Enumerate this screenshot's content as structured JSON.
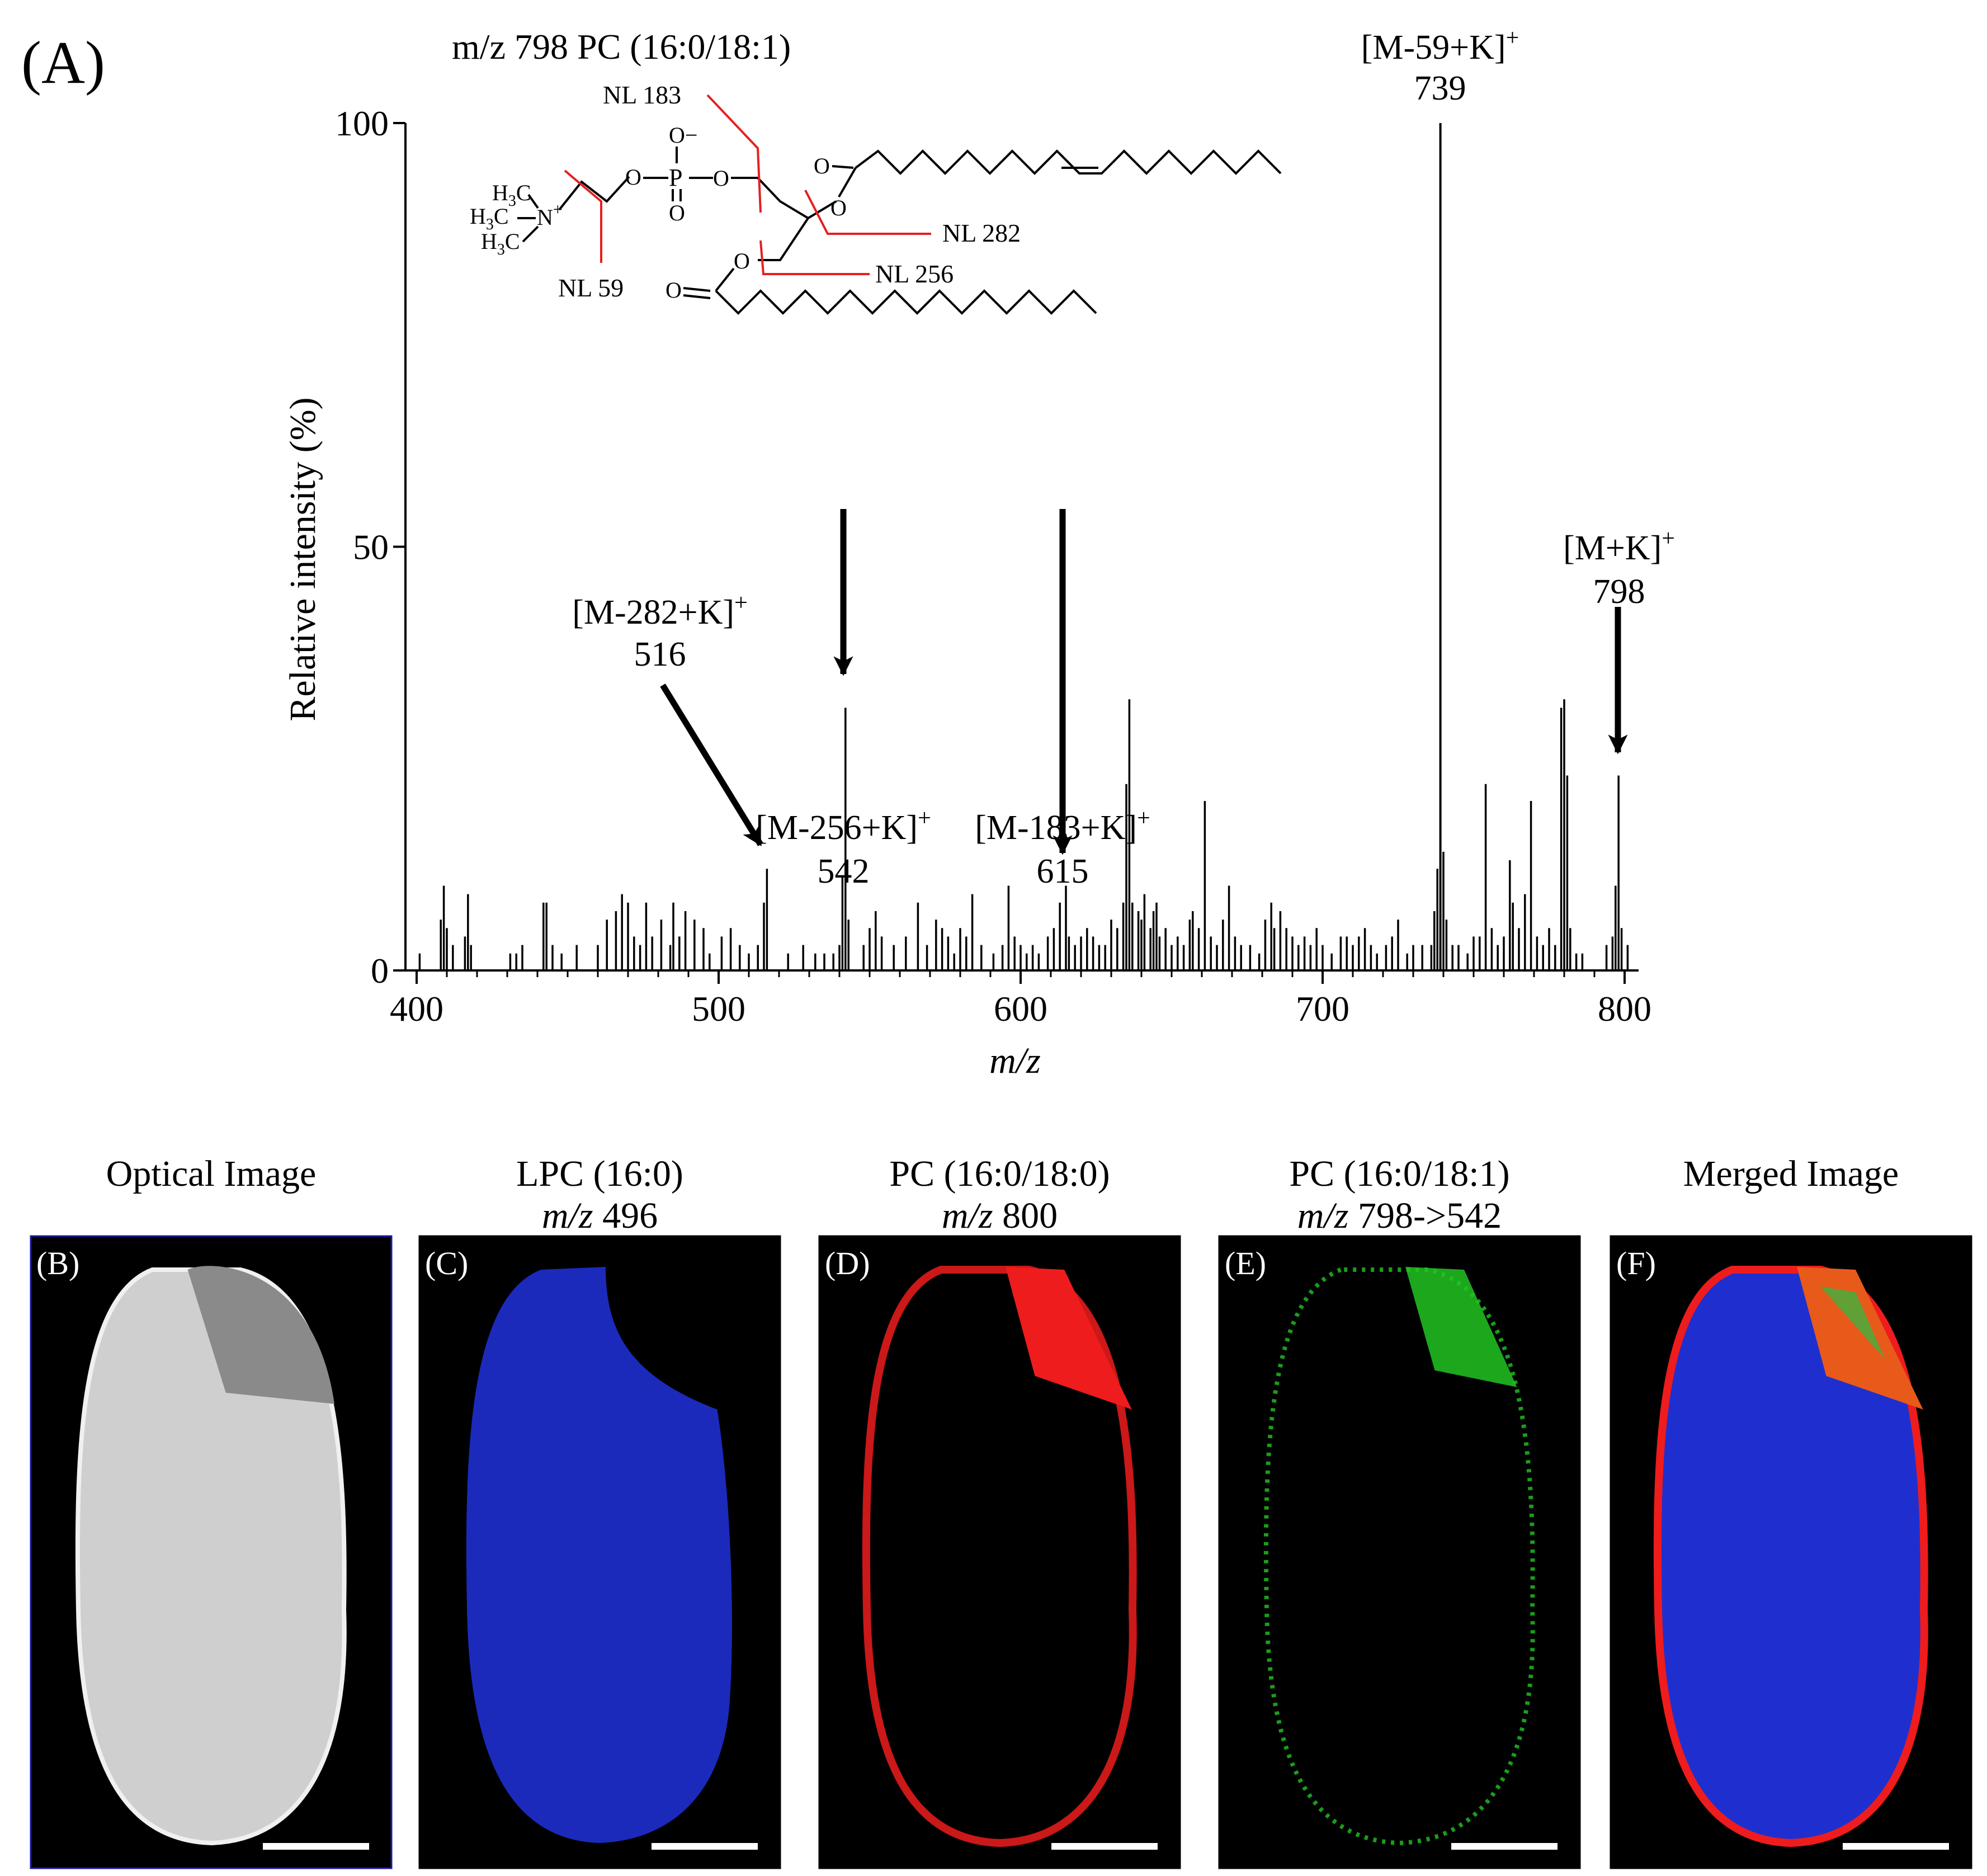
{
  "figure": {
    "panel_a_letter": "(A)",
    "structure": {
      "title": "m/z 798 PC (16:0/18:1)",
      "nl_labels": [
        "NL 183",
        "NL 282",
        "NL 256",
        "NL 59"
      ],
      "atom_o_minus": "O−",
      "atom_o": "O",
      "atom_p": "P",
      "atom_n": "N",
      "n_charge": "+",
      "methyl_prefix": "H",
      "methyl_sub": "3",
      "methyl_suffix": "C"
    },
    "image_panels": [
      {
        "letter": "(B)",
        "title1": "Optical Image",
        "title2": "",
        "title2_prefix": "",
        "title2_value": "",
        "color": "#d8d8d8"
      },
      {
        "letter": "(C)",
        "title1": "LPC (16:0)",
        "title2_prefix": "m/z",
        "title2_value": " 496",
        "color": "#1f2fcf"
      },
      {
        "letter": "(D)",
        "title1": "PC (16:0/18:0)",
        "title2_prefix": "m/z",
        "title2_value": " 800",
        "color": "#ee1c1c"
      },
      {
        "letter": "(E)",
        "title1": "PC (16:0/18:1)",
        "title2_prefix": "m/z",
        "title2_value": " 798->542",
        "color": "#22c422"
      },
      {
        "letter": "(F)",
        "title1": "Merged Image",
        "title2_prefix": "",
        "title2_value": "",
        "color": "#1f2fcf"
      }
    ]
  },
  "chart_data": {
    "type": "bar",
    "title": "",
    "xlabel": "m/z",
    "ylabel": "Relative intensity (%)",
    "xlim": [
      400,
      800
    ],
    "ylim": [
      0,
      100
    ],
    "x_ticks": [
      400,
      500,
      600,
      700,
      800
    ],
    "y_ticks": [
      0,
      50,
      100
    ],
    "annotations": [
      {
        "ion": "[M-282+K]",
        "charge": "+",
        "mz": "516",
        "x": 516
      },
      {
        "ion": "[M-256+K]",
        "charge": "+",
        "mz": "542",
        "x": 542
      },
      {
        "ion": "[M-183+K]",
        "charge": "+",
        "mz": "615",
        "x": 615
      },
      {
        "ion": "[M-59+K]",
        "charge": "+",
        "mz": "739",
        "x": 739
      },
      {
        "ion": "[M+K]",
        "charge": "+",
        "mz": "798",
        "x": 798
      }
    ],
    "peaks": [
      [
        401,
        2
      ],
      [
        408,
        6
      ],
      [
        409,
        10
      ],
      [
        410,
        5
      ],
      [
        412,
        3
      ],
      [
        416,
        4
      ],
      [
        417,
        9
      ],
      [
        418,
        3
      ],
      [
        431,
        2
      ],
      [
        433,
        2
      ],
      [
        435,
        3
      ],
      [
        442,
        8
      ],
      [
        443,
        8
      ],
      [
        445,
        3
      ],
      [
        448,
        2
      ],
      [
        453,
        3
      ],
      [
        460,
        3
      ],
      [
        463,
        6
      ],
      [
        466,
        7
      ],
      [
        468,
        9
      ],
      [
        470,
        8
      ],
      [
        472,
        4
      ],
      [
        474,
        3
      ],
      [
        476,
        8
      ],
      [
        478,
        4
      ],
      [
        481,
        6
      ],
      [
        484,
        3
      ],
      [
        485,
        8
      ],
      [
        487,
        4
      ],
      [
        489,
        7
      ],
      [
        492,
        6
      ],
      [
        495,
        5
      ],
      [
        497,
        2
      ],
      [
        501,
        4
      ],
      [
        504,
        5
      ],
      [
        507,
        3
      ],
      [
        510,
        2
      ],
      [
        513,
        3
      ],
      [
        515,
        8
      ],
      [
        516,
        12
      ],
      [
        523,
        2
      ],
      [
        528,
        3
      ],
      [
        532,
        2
      ],
      [
        535,
        2
      ],
      [
        538,
        2
      ],
      [
        540,
        3
      ],
      [
        541,
        11
      ],
      [
        542,
        31
      ],
      [
        543,
        6
      ],
      [
        548,
        3
      ],
      [
        550,
        5
      ],
      [
        552,
        7
      ],
      [
        554,
        4
      ],
      [
        558,
        3
      ],
      [
        562,
        4
      ],
      [
        566,
        8
      ],
      [
        569,
        3
      ],
      [
        572,
        6
      ],
      [
        574,
        5
      ],
      [
        576,
        4
      ],
      [
        578,
        2
      ],
      [
        580,
        5
      ],
      [
        582,
        4
      ],
      [
        584,
        9
      ],
      [
        587,
        3
      ],
      [
        591,
        2
      ],
      [
        594,
        3
      ],
      [
        596,
        10
      ],
      [
        598,
        4
      ],
      [
        600,
        3
      ],
      [
        602,
        2
      ],
      [
        604,
        3
      ],
      [
        606,
        2
      ],
      [
        609,
        4
      ],
      [
        611,
        5
      ],
      [
        613,
        8
      ],
      [
        615,
        10
      ],
      [
        616,
        4
      ],
      [
        618,
        3
      ],
      [
        620,
        4
      ],
      [
        622,
        5
      ],
      [
        624,
        4
      ],
      [
        626,
        3
      ],
      [
        628,
        3
      ],
      [
        630,
        6
      ],
      [
        632,
        5
      ],
      [
        634,
        8
      ],
      [
        635,
        22
      ],
      [
        636,
        32
      ],
      [
        637,
        8
      ],
      [
        639,
        7
      ],
      [
        640,
        6
      ],
      [
        641,
        9
      ],
      [
        643,
        5
      ],
      [
        644,
        7
      ],
      [
        645,
        8
      ],
      [
        646,
        4
      ],
      [
        648,
        5
      ],
      [
        650,
        3
      ],
      [
        652,
        4
      ],
      [
        654,
        3
      ],
      [
        656,
        6
      ],
      [
        657,
        7
      ],
      [
        659,
        5
      ],
      [
        661,
        20
      ],
      [
        663,
        4
      ],
      [
        665,
        3
      ],
      [
        667,
        6
      ],
      [
        669,
        10
      ],
      [
        671,
        4
      ],
      [
        673,
        3
      ],
      [
        676,
        3
      ],
      [
        679,
        2
      ],
      [
        681,
        6
      ],
      [
        683,
        8
      ],
      [
        684,
        5
      ],
      [
        686,
        7
      ],
      [
        688,
        5
      ],
      [
        690,
        4
      ],
      [
        692,
        3
      ],
      [
        694,
        4
      ],
      [
        696,
        3
      ],
      [
        698,
        5
      ],
      [
        700,
        3
      ],
      [
        703,
        2
      ],
      [
        706,
        4
      ],
      [
        708,
        4
      ],
      [
        710,
        3
      ],
      [
        712,
        4
      ],
      [
        714,
        5
      ],
      [
        716,
        3
      ],
      [
        718,
        2
      ],
      [
        721,
        3
      ],
      [
        723,
        4
      ],
      [
        725,
        6
      ],
      [
        728,
        2
      ],
      [
        730,
        3
      ],
      [
        733,
        3
      ],
      [
        736,
        3
      ],
      [
        737,
        7
      ],
      [
        738,
        12
      ],
      [
        739,
        100
      ],
      [
        740,
        14
      ],
      [
        741,
        6
      ],
      [
        743,
        3
      ],
      [
        745,
        3
      ],
      [
        748,
        2
      ],
      [
        750,
        4
      ],
      [
        752,
        4
      ],
      [
        754,
        22
      ],
      [
        756,
        5
      ],
      [
        758,
        3
      ],
      [
        760,
        4
      ],
      [
        762,
        13
      ],
      [
        763,
        8
      ],
      [
        765,
        5
      ],
      [
        767,
        9
      ],
      [
        769,
        20
      ],
      [
        771,
        4
      ],
      [
        773,
        3
      ],
      [
        775,
        5
      ],
      [
        777,
        3
      ],
      [
        779,
        31
      ],
      [
        780,
        32
      ],
      [
        781,
        23
      ],
      [
        782,
        5
      ],
      [
        784,
        2
      ],
      [
        786,
        2
      ],
      [
        794,
        3
      ],
      [
        796,
        4
      ],
      [
        797,
        10
      ],
      [
        798,
        23
      ],
      [
        799,
        5
      ],
      [
        801,
        3
      ]
    ]
  }
}
